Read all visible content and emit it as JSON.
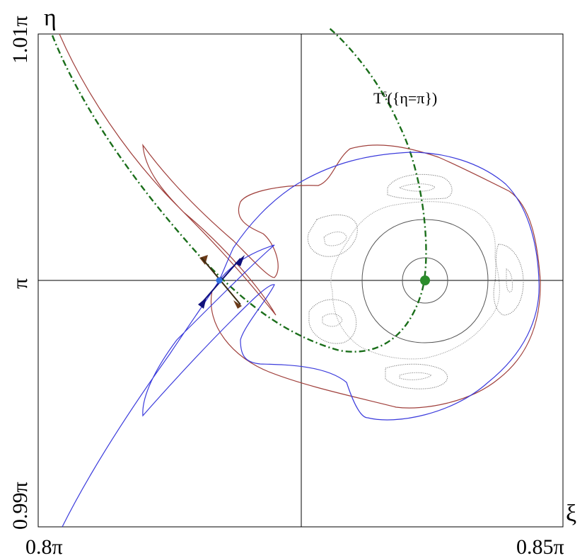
{
  "axes": {
    "y_symbol": "η",
    "x_symbol": "ξ",
    "y_top": "1.01π",
    "y_mid": "π",
    "y_bottom": "0.99π",
    "x_left": "0.8π",
    "x_right": "0.85π"
  },
  "annotation": {
    "curve_label_base": "T",
    "curve_label_sup": "5",
    "curve_label_rest": "({η=π})"
  },
  "colors": {
    "stable_manifold": "#3b3bdc",
    "unstable_manifold": "#a0403c",
    "iterated_line": "#1a6e1a",
    "fixed_point": "#2a8c2a",
    "hyperbolic_point": "#2f6fe0",
    "orbits": "#777777",
    "arrow_blue": "#10107a",
    "arrow_brown": "#6b3a18"
  },
  "points": {
    "elliptic_fixed_point": "green-dot",
    "hyperbolic_fixed_point": "blue-dot"
  }
}
